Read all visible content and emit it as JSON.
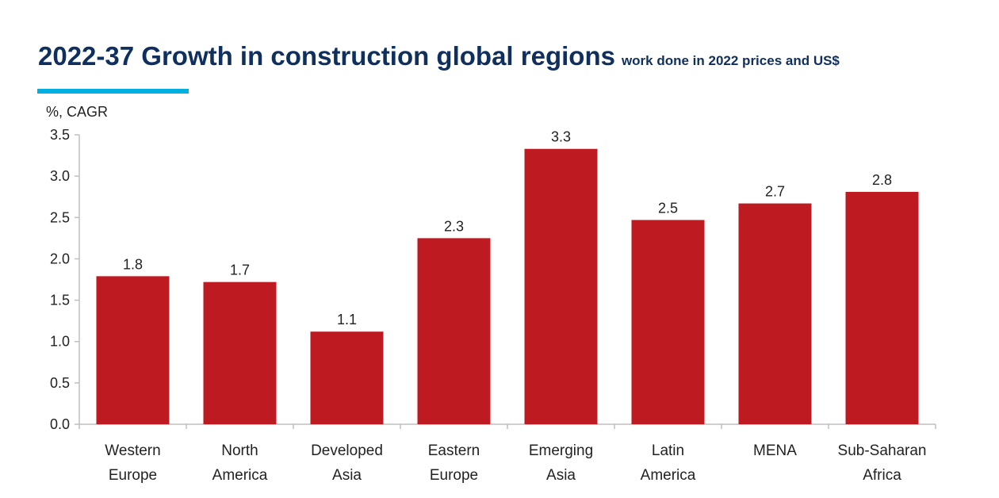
{
  "chart_data": {
    "type": "bar",
    "title": "2022-37 Growth in construction global regions",
    "subtitle": "work done in 2022 prices and US$",
    "ylabel": "%, CAGR",
    "xlabel": "",
    "categories": [
      [
        "Western",
        "Europe"
      ],
      [
        "North",
        "America"
      ],
      [
        "Developed",
        "Asia"
      ],
      [
        "Eastern",
        "Europe"
      ],
      [
        "Emerging",
        "Asia"
      ],
      [
        "Latin",
        "America"
      ],
      [
        "MENA"
      ],
      [
        "Sub-Saharan",
        "Africa"
      ]
    ],
    "values": [
      1.79,
      1.72,
      1.12,
      2.25,
      3.33,
      2.47,
      2.67,
      2.81
    ],
    "data_labels": [
      "1.8",
      "1.7",
      "1.1",
      "2.3",
      "3.3",
      "2.5",
      "2.7",
      "2.8"
    ],
    "ylim": [
      0,
      3.5
    ],
    "yticks": [
      "0.0",
      "0.5",
      "1.0",
      "1.5",
      "2.0",
      "2.5",
      "3.0",
      "3.5"
    ],
    "grid": false,
    "colors": {
      "bar": "#be1a22",
      "title": "#0f2f5f",
      "accent": "#00b0e0",
      "axis": "#bfbfbf"
    }
  }
}
